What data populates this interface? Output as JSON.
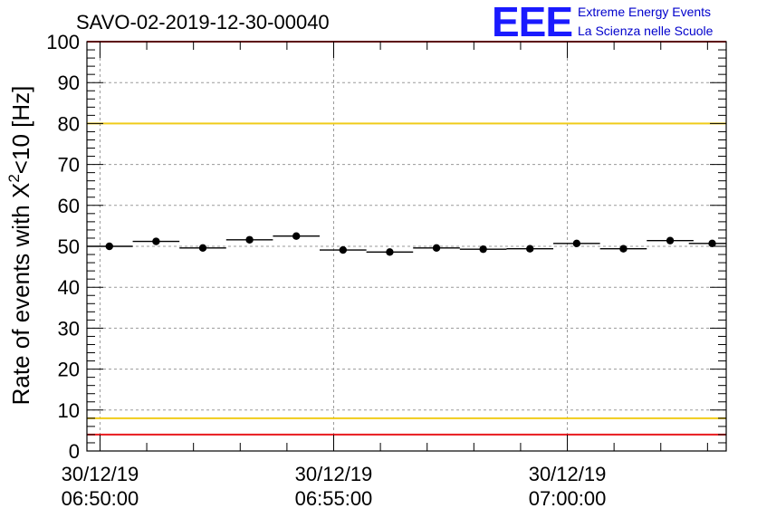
{
  "chart_data": {
    "type": "scatter",
    "title": "SAVO-02-2019-12-30-00040",
    "ylabel": "Rate of events with X",
    "ylabel_sup": "2",
    "ylabel_suffix": "<10 [Hz]",
    "ylim": [
      0,
      100
    ],
    "yticks": [
      0,
      10,
      20,
      30,
      40,
      50,
      60,
      70,
      80,
      90,
      100
    ],
    "xticks": [
      {
        "date": "30/12/19",
        "time": "06:50:00",
        "minutes": 0
      },
      {
        "date": "30/12/19",
        "time": "06:55:00",
        "minutes": 5
      },
      {
        "date": "30/12/19",
        "time": "07:00:00",
        "minutes": 10
      }
    ],
    "xlim_minutes": [
      -0.28,
      13.4
    ],
    "bin_half_width_minutes": 0.5,
    "grid": true,
    "series": [
      {
        "name": "rate",
        "x_minutes": [
          0.2,
          1.2,
          2.2,
          3.2,
          4.2,
          5.2,
          6.2,
          7.2,
          8.2,
          9.2,
          10.2,
          11.2,
          12.2,
          13.1
        ],
        "values": [
          50.0,
          51.2,
          49.6,
          51.6,
          52.5,
          49.1,
          48.6,
          49.6,
          49.3,
          49.4,
          50.7,
          49.4,
          51.4,
          50.7
        ]
      }
    ],
    "reference_lines": [
      {
        "name": "upper-red",
        "value": 100,
        "color": "#e8191e"
      },
      {
        "name": "upper-yellow",
        "value": 80,
        "color": "#f0cc1a"
      },
      {
        "name": "lower-yellow",
        "value": 8,
        "color": "#f0cc1a"
      },
      {
        "name": "lower-red",
        "value": 4,
        "color": "#e8191e"
      }
    ]
  },
  "logo": {
    "letters": "EEE",
    "line1": "Extreme Energy Events",
    "line2": "La Scienza nelle Scuole",
    "color": "#1a1aff"
  }
}
